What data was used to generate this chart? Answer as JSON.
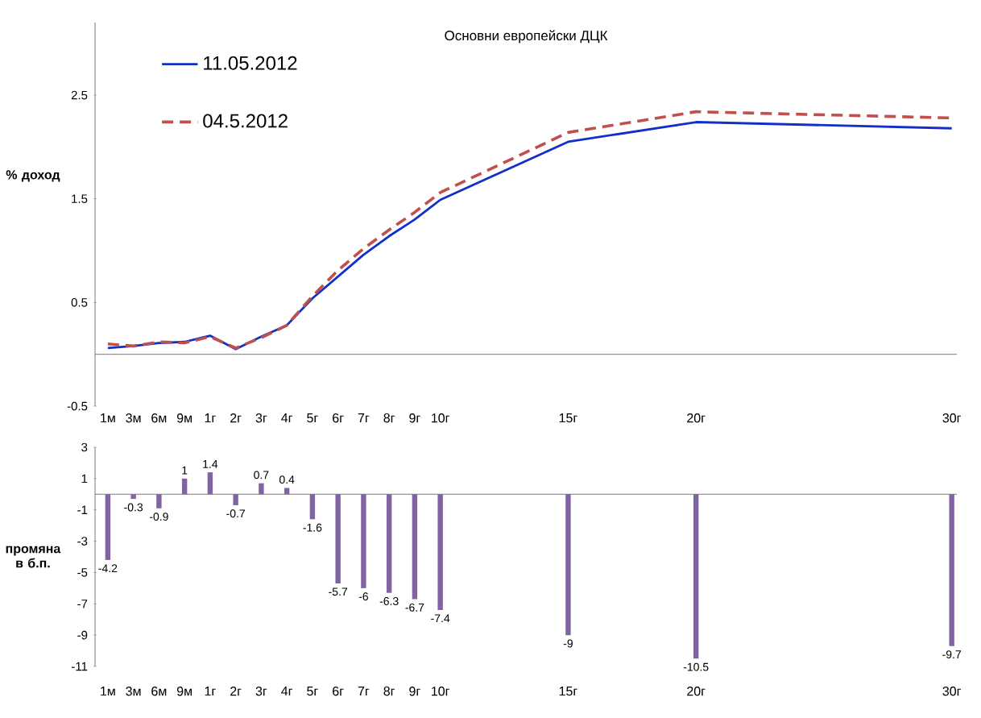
{
  "chart_data": [
    {
      "type": "line",
      "title": "Основни европейски ДЦК",
      "ylabel": "% доход",
      "categories": [
        "1м",
        "3м",
        "6м",
        "9м",
        "1г",
        "2г",
        "3г",
        "4г",
        "5г",
        "6г",
        "7г",
        "8г",
        "9г",
        "10г",
        null,
        null,
        null,
        null,
        "15г",
        null,
        null,
        null,
        null,
        "20г",
        null,
        null,
        null,
        null,
        null,
        null,
        null,
        null,
        null,
        "30г"
      ],
      "ylim": [
        -0.5,
        3.2
      ],
      "yticks": [
        -0.5,
        0.5,
        1.5,
        2.5
      ],
      "legend": "top left",
      "series": [
        {
          "name": "11.05.2012",
          "color": "#1230c8",
          "line_style": "solid",
          "values": [
            0.06,
            0.08,
            0.11,
            0.12,
            0.18,
            0.05,
            0.17,
            0.28,
            0.54,
            0.75,
            0.96,
            1.14,
            1.3,
            1.49,
            null,
            null,
            null,
            null,
            2.05,
            null,
            null,
            null,
            null,
            2.24,
            null,
            null,
            null,
            null,
            null,
            null,
            null,
            null,
            null,
            2.18
          ]
        },
        {
          "name": "04.5.2012",
          "color": "#c0504d",
          "line_style": "dashed",
          "values": [
            0.1,
            0.08,
            0.12,
            0.11,
            0.17,
            0.06,
            0.16,
            0.28,
            0.56,
            0.81,
            1.02,
            1.2,
            1.37,
            1.56,
            null,
            null,
            null,
            null,
            2.14,
            null,
            null,
            null,
            null,
            2.34,
            null,
            null,
            null,
            null,
            null,
            null,
            null,
            null,
            null,
            2.28
          ]
        }
      ]
    },
    {
      "type": "bar",
      "ylabel": "промяна в б.п.",
      "categories": [
        "1м",
        "3м",
        "6м",
        "9м",
        "1г",
        "2г",
        "3г",
        "4г",
        "5г",
        "6г",
        "7г",
        "8г",
        "9г",
        "10г",
        null,
        null,
        null,
        null,
        "15г",
        null,
        null,
        null,
        null,
        "20г",
        null,
        null,
        null,
        null,
        null,
        null,
        null,
        null,
        null,
        "30г"
      ],
      "ylim": [
        -11,
        3
      ],
      "yticks": [
        -11,
        -9,
        -7,
        -5,
        -3,
        -1,
        1,
        3
      ],
      "color": "#8064a2",
      "values": [
        -4.2,
        -0.3,
        -0.9,
        1,
        1.4,
        -0.7,
        0.7,
        0.4,
        -1.6,
        -5.7,
        -6,
        -6.3,
        -6.7,
        -7.4,
        null,
        null,
        null,
        null,
        -9,
        null,
        null,
        null,
        null,
        -10.5,
        null,
        null,
        null,
        null,
        null,
        null,
        null,
        null,
        null,
        -9.7
      ],
      "value_labels": [
        "-4.2",
        "-0.3",
        "-0.9",
        "1",
        "1.4",
        "-0.7",
        "0.7",
        "0.4",
        "-1.6",
        "-5.7",
        "-6",
        "-6.3",
        "-6.7",
        "-7.4",
        null,
        null,
        null,
        null,
        "-9",
        null,
        null,
        null,
        null,
        "-10.5",
        null,
        null,
        null,
        null,
        null,
        null,
        null,
        null,
        null,
        "-9.7"
      ]
    }
  ]
}
